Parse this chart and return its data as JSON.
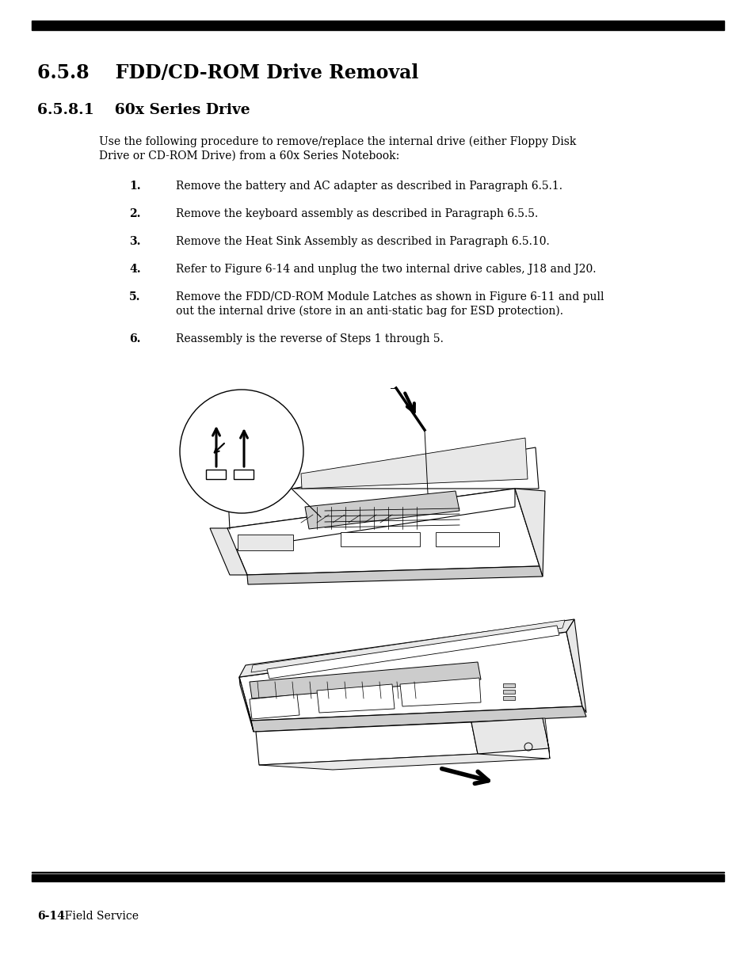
{
  "title": "6.5.8    FDD/CD-ROM Drive Removal",
  "subtitle": "6.5.8.1    60x Series Drive",
  "intro_text_line1": "Use the following procedure to remove/replace the internal drive (either Floppy Disk",
  "intro_text_line2": "Drive or CD-ROM Drive) from a 60x Series Notebook:",
  "steps": [
    {
      "num": "1.",
      "text": "Remove the battery and AC adapter as described in Paragraph 6.5.1."
    },
    {
      "num": "2.",
      "text": "Remove the keyboard assembly as described in Paragraph 6.5.5."
    },
    {
      "num": "3.",
      "text": "Remove the Heat Sink Assembly as described in Paragraph 6.5.10."
    },
    {
      "num": "4.",
      "text": "Refer to Figure 6-14 and unplug the two internal drive cables, J18 and J20."
    },
    {
      "num": "5.",
      "text": "Remove the FDD/CD-ROM Module Latches as shown in Figure 6-11 and pull"
    },
    {
      "num": "",
      "text": "out the internal drive (store in an anti-static bag for ESD protection)."
    },
    {
      "num": "6.",
      "text": "Reassembly is the reverse of Steps 1 through 5."
    }
  ],
  "footer_bold": "6-14",
  "footer_normal": "  Field Service",
  "bg": "#ffffff",
  "black": "#000000",
  "gray_light": "#e8e8e8",
  "gray_mid": "#cccccc",
  "gray_dark": "#aaaaaa"
}
